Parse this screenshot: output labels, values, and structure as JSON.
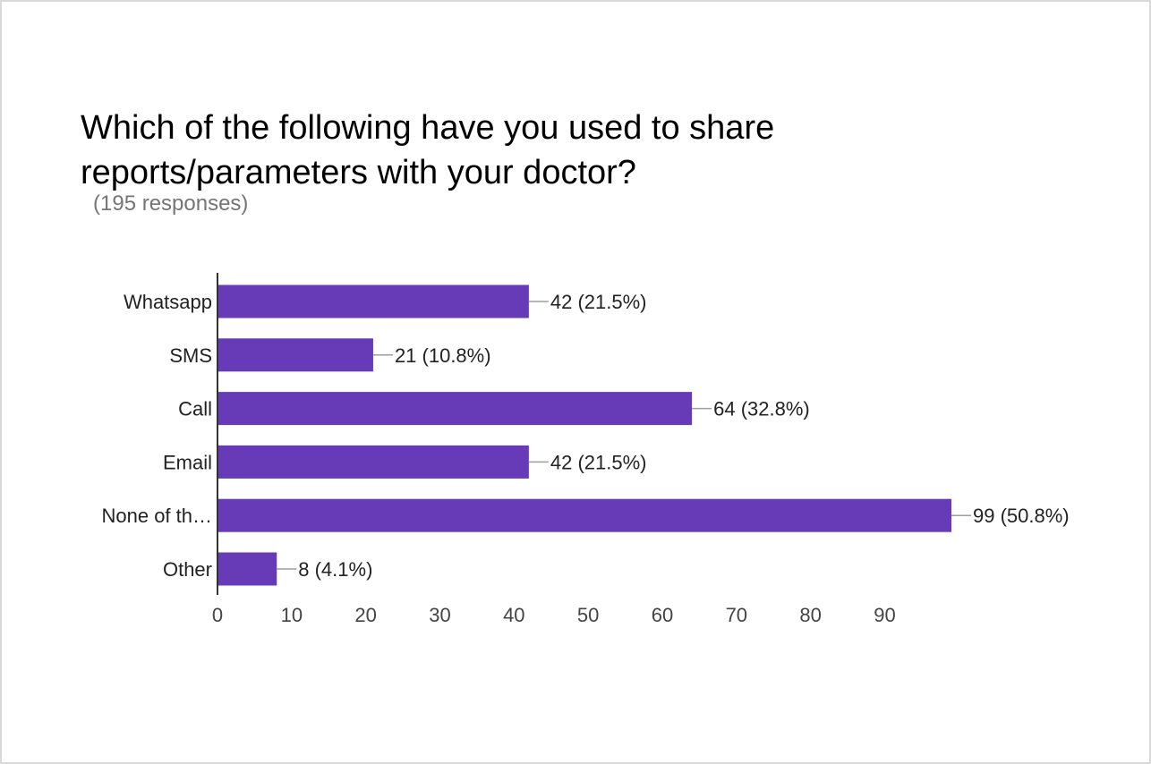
{
  "chart_data": {
    "type": "bar",
    "orientation": "horizontal",
    "title": "Which of the following have you used to share reports/parameters with your doctor?",
    "subtitle": "(195 responses)",
    "categories": [
      "Whatsapp",
      "SMS",
      "Call",
      "Email",
      "None of th…",
      "Other"
    ],
    "values": [
      42,
      21,
      64,
      42,
      99,
      8
    ],
    "value_labels": [
      "42 (21.5%)",
      "21 (10.8%)",
      "64 (32.8%)",
      "42 (21.5%)",
      "99 (50.8%)",
      "8 (4.1%)"
    ],
    "xticks": [
      0,
      10,
      20,
      30,
      40,
      50,
      60,
      70,
      80,
      90
    ],
    "xlim": [
      0,
      100
    ],
    "grid": false,
    "bar_color": "#673ab7",
    "axis_color": "#333333",
    "leader_color": "#9e9e9e"
  }
}
